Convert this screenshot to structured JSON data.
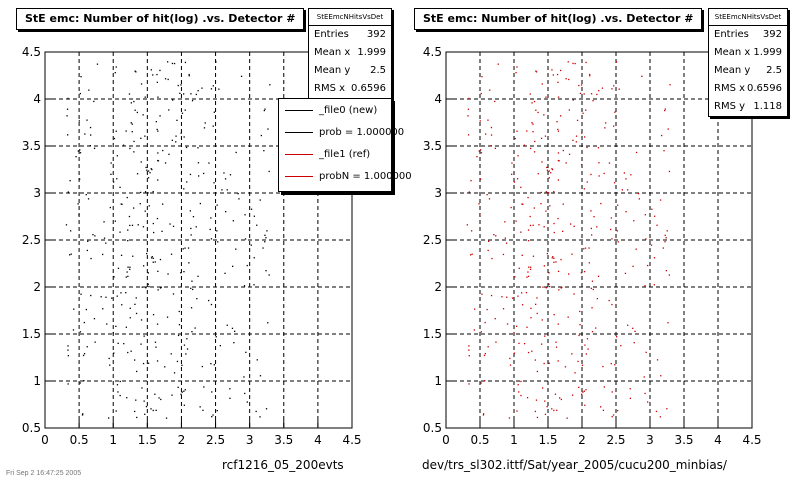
{
  "panels": [
    {
      "title": "StE emc: Number of hit(log) .vs. Detector #",
      "stats": {
        "name": "StEEmcNHitsVsDet",
        "rows": [
          {
            "label": "Entries",
            "value": "392"
          },
          {
            "label": "Mean x",
            "value": "1.999"
          },
          {
            "label": "Mean y",
            "value": "2.5"
          },
          {
            "label": "RMS x",
            "value": "0.6596"
          }
        ]
      },
      "legend": [
        {
          "label": "_file0 (new)",
          "color": "#000000"
        },
        {
          "label": "prob = 1.000000",
          "color": "#000000"
        },
        {
          "label": "_file1 (ref)",
          "color": "#cc0000"
        },
        {
          "label": "probN = 1.000000",
          "color": "#cc0000"
        }
      ],
      "sublabel": "rcf1216_05_200evts"
    },
    {
      "title": "StE emc: Number of hit(log) .vs. Detector #",
      "stats": {
        "name": "StEEmcNHitsVsDet",
        "rows": [
          {
            "label": "Entries",
            "value": "392"
          },
          {
            "label": "Mean x",
            "value": "1.999"
          },
          {
            "label": "Mean y",
            "value": "2.5"
          },
          {
            "label": "RMS x",
            "value": "0.6596"
          },
          {
            "label": "RMS y",
            "value": "1.118"
          }
        ]
      },
      "sublabel": "dev/trs_sl302.ittf/Sat/year_2005/cucu200_minbias/"
    }
  ],
  "chart_data": [
    {
      "type": "scatter",
      "series": [
        {
          "color": "#000000",
          "entries": 392
        }
      ],
      "xlim": [
        0,
        4.5
      ],
      "ylim": [
        0.5,
        4.5
      ],
      "xticks": [
        "0",
        "0.5",
        "1",
        "1.5",
        "2",
        "2.5",
        "3",
        "3.5",
        "4",
        "4.5"
      ],
      "yticks": [
        "0.5",
        "1",
        "1.5",
        "2",
        "2.5",
        "3",
        "3.5",
        "4",
        "4.5"
      ],
      "grid": true
    },
    {
      "type": "scatter",
      "series": [
        {
          "color": "#cc0000",
          "entries": 392
        }
      ],
      "xlim": [
        0,
        4.5
      ],
      "ylim": [
        0.5,
        4.5
      ],
      "xticks": [
        "0",
        "0.5",
        "1",
        "1.5",
        "2",
        "2.5",
        "3",
        "3.5",
        "4",
        "4.5"
      ],
      "yticks": [
        "0.5",
        "1",
        "1.5",
        "2",
        "2.5",
        "3",
        "3.5",
        "4",
        "4.5"
      ],
      "grid": true
    }
  ],
  "footer": "Fri Sep  2 16:47:25 2005"
}
